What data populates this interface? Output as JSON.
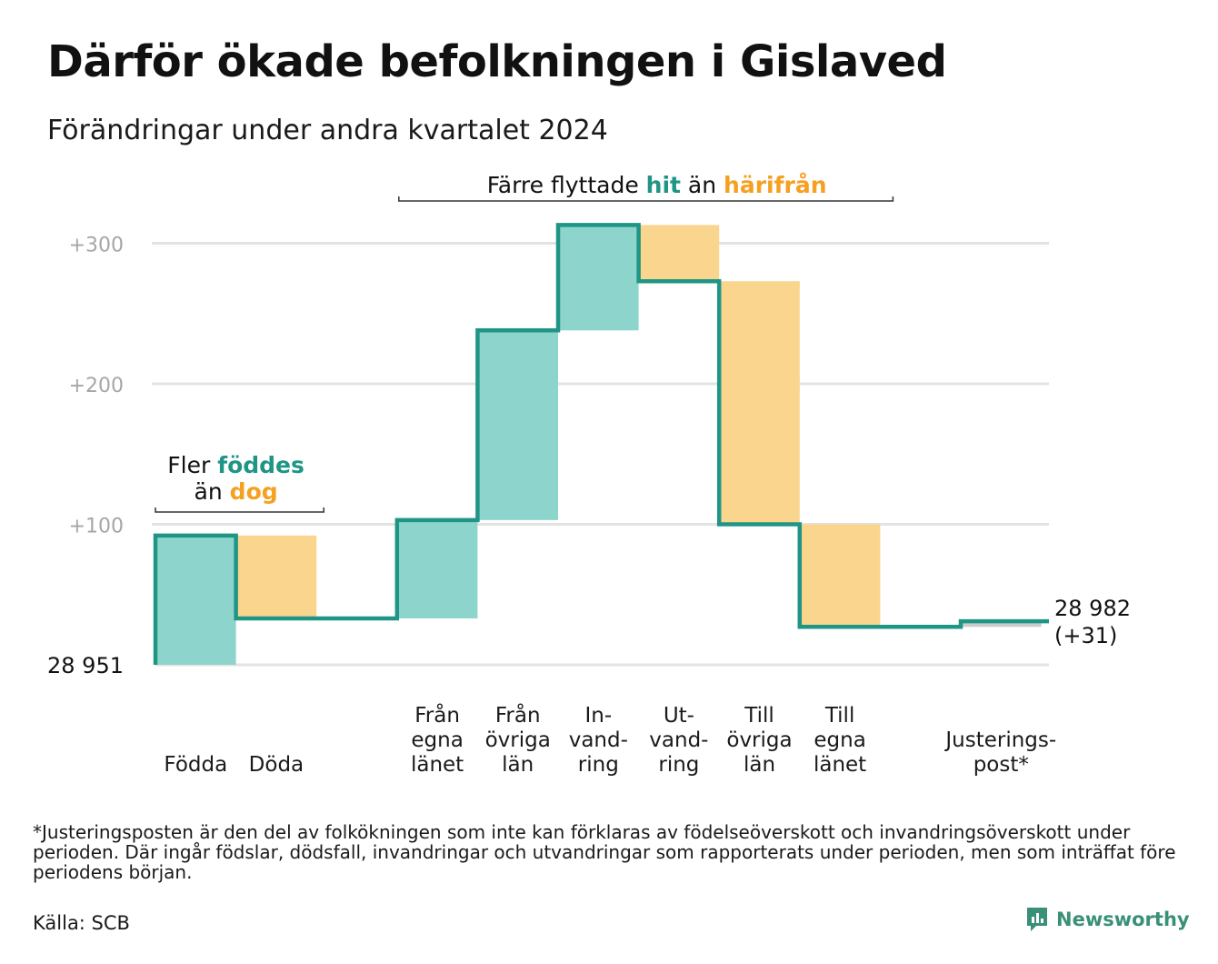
{
  "title": "Därför ökade befolkningen i Gislaved",
  "subtitle": "Förändringar under andra kvartalet 2024",
  "footnote": "*Justeringsposten är den del av folkökningen som inte kan förklaras av födelseöverskott och invandringsöverskott under perioden. Där ingår födslar, dödsfall, invandringar och utvandringar som rapporterats under perioden, men som inträffat före periodens början.",
  "source": "Källa: SCB",
  "brand": "Newsworthy",
  "colors": {
    "line": "#1f9585",
    "increase": "#8dd5cc",
    "decrease": "#fad58e",
    "adjustment": "#cccccc",
    "grid": "#e3e3e3",
    "tick": "#a6a6a6",
    "accent_teal": "#1f9585",
    "accent_orange": "#f5a020",
    "brand": "#3a8f78"
  },
  "chart_data": {
    "type": "waterfall",
    "base_population": 28951,
    "base_label": "28  951",
    "end_label": "28 982",
    "end_change_label": "(+31)",
    "ylim": [
      0,
      300
    ],
    "yticks": [
      {
        "value": 100,
        "label": "+100"
      },
      {
        "value": 200,
        "label": "+200"
      },
      {
        "value": 300,
        "label": "+300"
      }
    ],
    "grid": true,
    "steps": [
      {
        "name": "Födda",
        "label_lines": [
          "Födda"
        ],
        "change": 92,
        "kind": "increase"
      },
      {
        "name": "Döda",
        "label_lines": [
          "Döda"
        ],
        "change": -59,
        "kind": "decrease"
      },
      {
        "name": "gap",
        "label_lines": [],
        "change": 0,
        "kind": "gap"
      },
      {
        "name": "Från egna länet",
        "label_lines": [
          "Från",
          "egna",
          "länet"
        ],
        "change": 70,
        "kind": "increase"
      },
      {
        "name": "Från övriga län",
        "label_lines": [
          "Från",
          "övriga",
          "län"
        ],
        "change": 135,
        "kind": "increase"
      },
      {
        "name": "Invandring",
        "label_lines": [
          "In-",
          "vand-",
          "ring"
        ],
        "change": 75,
        "kind": "increase"
      },
      {
        "name": "Utvandring",
        "label_lines": [
          "Ut-",
          "vand-",
          "ring"
        ],
        "change": -40,
        "kind": "decrease"
      },
      {
        "name": "Till övriga län",
        "label_lines": [
          "Till",
          "övriga",
          "län"
        ],
        "change": -173,
        "kind": "decrease"
      },
      {
        "name": "Till egna länet",
        "label_lines": [
          "Till",
          "egna",
          "länet"
        ],
        "change": -73,
        "kind": "decrease"
      },
      {
        "name": "gap",
        "label_lines": [],
        "change": 0,
        "kind": "gap"
      },
      {
        "name": "Justeringspost*",
        "label_lines": [
          "Justerings-",
          "post*"
        ],
        "change": 4,
        "kind": "adjustment"
      }
    ],
    "annotations": [
      {
        "id": "births",
        "first_step": 0,
        "last_step": 1,
        "line1": [
          {
            "text": "Fler ",
            "style": "plain"
          },
          {
            "text": "föddes",
            "style": "teal"
          }
        ],
        "line2": [
          {
            "text": "än ",
            "style": "plain"
          },
          {
            "text": "dog",
            "style": "orange"
          }
        ]
      },
      {
        "id": "moves",
        "first_step": 3,
        "last_step": 8,
        "line1": [
          {
            "text": "Färre flyttade ",
            "style": "plain"
          },
          {
            "text": "hit",
            "style": "teal"
          },
          {
            "text": " än ",
            "style": "plain"
          },
          {
            "text": "härifrån",
            "style": "orange"
          }
        ]
      }
    ]
  }
}
